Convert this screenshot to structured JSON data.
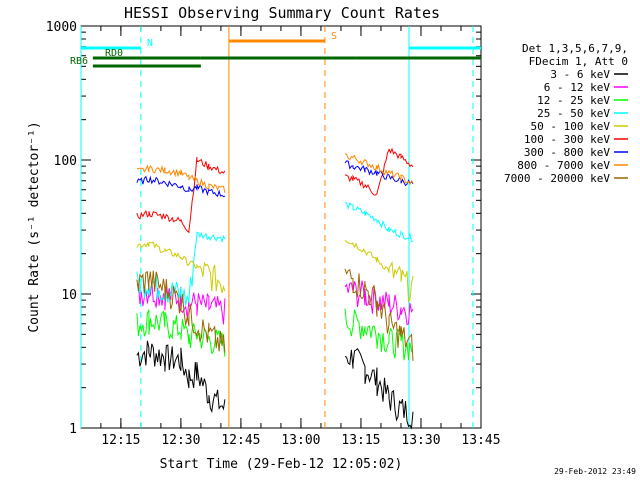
{
  "chart_data": {
    "type": "line",
    "title": "HESSI Observing Summary Count Rates",
    "xlabel": "Start Time (29-Feb-12 12:05:02)",
    "ylabel": "Count Rate (s⁻¹ detector⁻¹)",
    "y_scale": "log",
    "ylim": [
      1,
      1000
    ],
    "xlim": [
      "12:05:02",
      "13:45:00"
    ],
    "x_tick_labels": [
      "12:15",
      "12:30",
      "12:45",
      "13:00",
      "13:15",
      "13:30",
      "13:45"
    ],
    "y_tick_labels": [
      "1",
      "10",
      "100",
      "1000"
    ],
    "grid": false,
    "legend_position": "right",
    "legend_header": [
      "Det 1,3,5,6,7,9,",
      "FDecim 1, Att 0"
    ],
    "timestamp": "29-Feb-2012 23:49",
    "series": [
      {
        "name": "3 - 6 keV",
        "color": "#000000",
        "x": [
          "12:19",
          "12:22",
          "12:26",
          "12:30",
          "12:32",
          "12:34",
          "12:37",
          "12:41",
          "13:11",
          "13:13",
          "13:16",
          "13:19",
          "13:22",
          "13:25",
          "13:28"
        ],
        "values": [
          3.5,
          3.8,
          3.4,
          3.2,
          2.4,
          2.6,
          1.8,
          1.4,
          3.5,
          3.4,
          2.8,
          2.3,
          1.7,
          1.4,
          1.3
        ]
      },
      {
        "name": "6 - 12 keV",
        "color": "#ff00ff",
        "x": [
          "12:19",
          "12:22",
          "12:26",
          "12:30",
          "12:32",
          "12:34",
          "12:37",
          "12:41",
          "13:11",
          "13:13",
          "13:16",
          "13:19",
          "13:22",
          "13:25",
          "13:28"
        ],
        "values": [
          10,
          11,
          10,
          9.5,
          8.5,
          8.5,
          8,
          7.5,
          11,
          10.5,
          10,
          9,
          8.5,
          8,
          7.5
        ]
      },
      {
        "name": "12 - 25 keV",
        "color": "#00ff00",
        "x": [
          "12:19",
          "12:22",
          "12:26",
          "12:30",
          "12:32",
          "12:34",
          "12:37",
          "12:41",
          "13:11",
          "13:13",
          "13:16",
          "13:19",
          "13:22",
          "13:25",
          "13:28"
        ],
        "values": [
          6,
          6.5,
          6,
          5.5,
          4.8,
          5,
          4.6,
          4.3,
          6.5,
          6.2,
          5.8,
          5.2,
          4.5,
          4.3,
          4
        ]
      },
      {
        "name": "25 - 50 keV",
        "color": "#00ffff",
        "x": [
          "12:19",
          "12:22",
          "12:26",
          "12:30",
          "12:32",
          "12:34",
          "12:37",
          "12:41",
          "13:11",
          "13:13",
          "13:16",
          "13:19",
          "13:22",
          "13:25",
          "13:28"
        ],
        "values": [
          12,
          12.5,
          11,
          10,
          9,
          28,
          27,
          26,
          47,
          44,
          40,
          36,
          30,
          28,
          26
        ]
      },
      {
        "name": "50 - 100 keV",
        "color": "#cccc00",
        "x": [
          "12:19",
          "12:22",
          "12:26",
          "12:30",
          "12:32",
          "12:34",
          "12:37",
          "12:41",
          "13:11",
          "13:13",
          "13:16",
          "13:19",
          "13:22",
          "13:25",
          "13:28"
        ],
        "values": [
          23,
          24,
          21,
          19,
          17,
          16,
          14,
          12,
          26,
          24,
          21,
          18,
          15,
          13,
          11
        ]
      },
      {
        "name": "100 - 300 keV",
        "color": "#ff0000",
        "x": [
          "12:19",
          "12:22",
          "12:26",
          "12:30",
          "12:32",
          "12:34",
          "12:37",
          "12:41",
          "13:11",
          "13:13",
          "13:16",
          "13:19",
          "13:22",
          "13:25",
          "13:28"
        ],
        "values": [
          38,
          40,
          38,
          35,
          30,
          100,
          90,
          80,
          75,
          72,
          65,
          55,
          120,
          105,
          90
        ]
      },
      {
        "name": "300 - 800 keV",
        "color": "#0000ff",
        "x": [
          "12:19",
          "12:22",
          "12:26",
          "12:30",
          "12:32",
          "12:34",
          "12:37",
          "12:41",
          "13:11",
          "13:13",
          "13:16",
          "13:19",
          "13:22",
          "13:25",
          "13:28"
        ],
        "values": [
          68,
          72,
          68,
          64,
          60,
          62,
          58,
          55,
          95,
          90,
          85,
          80,
          74,
          70,
          66
        ]
      },
      {
        "name": "800 - 7000 keV",
        "color": "#ff8800",
        "x": [
          "12:19",
          "12:22",
          "12:26",
          "12:30",
          "12:32",
          "12:34",
          "12:37",
          "12:41",
          "13:11",
          "13:13",
          "13:16",
          "13:19",
          "13:22",
          "13:25",
          "13:28"
        ],
        "values": [
          82,
          86,
          84,
          80,
          74,
          70,
          64,
          60,
          108,
          104,
          96,
          88,
          80,
          74,
          66
        ]
      },
      {
        "name": "7000 - 20000 keV",
        "color": "#996600",
        "x": [
          "12:19",
          "12:22",
          "12:26",
          "12:30",
          "12:32",
          "12:34",
          "12:37",
          "12:41",
          "13:11",
          "13:13",
          "13:16",
          "13:19",
          "13:22",
          "13:25",
          "13:28"
        ],
        "values": [
          12,
          13,
          11,
          9,
          7,
          6,
          5,
          4,
          14,
          13,
          11,
          9,
          6,
          5,
          4
        ]
      }
    ],
    "flag_bars": [
      {
        "label": "N",
        "color": "#00ffff",
        "segments": [
          [
            "12:05:02",
            "12:20"
          ],
          [
            "13:27",
            "13:45"
          ]
        ]
      },
      {
        "label": "S",
        "color": "#ff8800",
        "segments": [
          [
            "12:42",
            "13:06"
          ]
        ]
      },
      {
        "label": "RD0",
        "color": "#006600",
        "segments": [
          [
            "12:08",
            "12:35"
          ],
          [
            "12:35",
            "13:08"
          ],
          [
            "13:08",
            "13:14"
          ],
          [
            "13:14",
            "13:45"
          ]
        ]
      },
      {
        "label": "RB6",
        "color": "#006600",
        "segments": [
          [
            "12:08",
            "12:35"
          ]
        ]
      }
    ],
    "vertical_lines": [
      {
        "x": "12:05:02",
        "color": "#00ffff",
        "style": "solid"
      },
      {
        "x": "12:20",
        "color": "#00ffff",
        "style": "dashed"
      },
      {
        "x": "12:42",
        "color": "#ff8800",
        "style": "solid"
      },
      {
        "x": "13:06",
        "color": "#ff8800",
        "style": "dashed"
      },
      {
        "x": "13:27",
        "color": "#00ffff",
        "style": "solid"
      },
      {
        "x": "13:43",
        "color": "#00ffff",
        "style": "dashed"
      }
    ]
  }
}
